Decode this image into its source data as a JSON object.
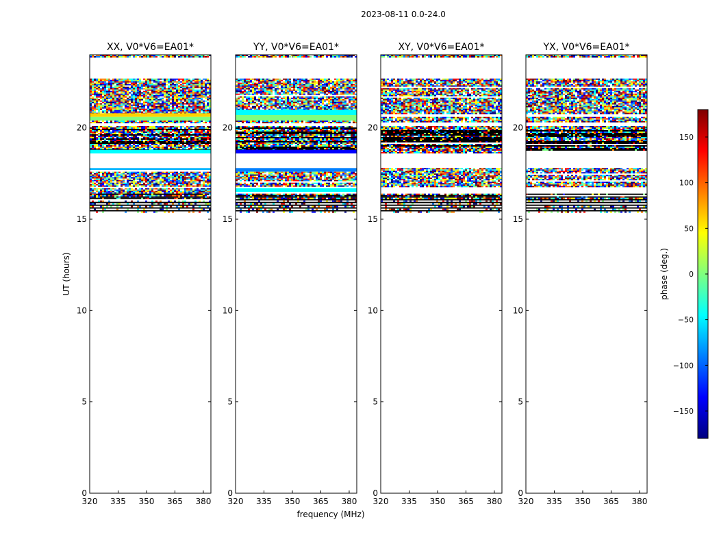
{
  "figure": {
    "title": "2023-08-11 0.0-24.0",
    "xlabel": "frequency (MHz)",
    "ylabel": "UT (hours)"
  },
  "colorbar": {
    "label": "phase (deg.)",
    "range": [
      -180,
      180
    ],
    "ticks": [
      -150,
      -100,
      -50,
      0,
      50,
      100,
      150
    ],
    "tick_labels": [
      "−150",
      "−100",
      "−50",
      "0",
      "50",
      "100",
      "150"
    ],
    "colormap": [
      "#00007f",
      "#0000ff",
      "#007fff",
      "#00ffff",
      "#7fff7f",
      "#ffff00",
      "#ff7f00",
      "#ff0000",
      "#7f0000"
    ]
  },
  "chart_data": [
    {
      "type": "heatmap",
      "title": "XX, V0*V6=EA01*",
      "xlim": [
        320,
        384
      ],
      "ylim": [
        0,
        24
      ],
      "xticks": [
        320,
        335,
        350,
        365,
        380
      ],
      "yticks": [
        0,
        5,
        10,
        15,
        20
      ],
      "bands": [
        {
          "range": [
            23.9,
            24.0
          ],
          "kind": "noise"
        },
        {
          "range": [
            20.8,
            22.7
          ],
          "kind": "noise"
        },
        {
          "range": [
            20.6,
            20.8
          ],
          "kind": "solid",
          "color": "#ffd200"
        },
        {
          "range": [
            20.4,
            20.6
          ],
          "kind": "solid",
          "color": "#7fff7f"
        },
        {
          "range": [
            20.3,
            20.4
          ],
          "kind": "noise"
        },
        {
          "range": [
            18.8,
            20.1
          ],
          "kind": "dark"
        },
        {
          "range": [
            18.6,
            18.8
          ],
          "kind": "solid",
          "color": "#00ffff"
        },
        {
          "range": [
            17.7,
            17.8
          ],
          "kind": "solid",
          "color": "#00b4ff"
        },
        {
          "range": [
            16.8,
            17.6
          ],
          "kind": "noise"
        },
        {
          "range": [
            16.4,
            16.7
          ],
          "kind": "noise"
        },
        {
          "range": [
            16.1,
            16.4
          ],
          "kind": "dark"
        },
        {
          "range": [
            15.4,
            16.1
          ],
          "kind": "fringe"
        }
      ]
    },
    {
      "type": "heatmap",
      "title": "YY, V0*V6=EA01*",
      "xlim": [
        320,
        384
      ],
      "ylim": [
        0,
        24
      ],
      "xticks": [
        320,
        335,
        350,
        365,
        380
      ],
      "yticks": [
        0,
        5,
        10,
        15,
        20
      ],
      "bands": [
        {
          "range": [
            23.9,
            24.0
          ],
          "kind": "noise"
        },
        {
          "range": [
            21.0,
            22.7
          ],
          "kind": "noise"
        },
        {
          "range": [
            20.7,
            21.0
          ],
          "kind": "solid",
          "color": "#00ffff"
        },
        {
          "range": [
            20.4,
            20.7
          ],
          "kind": "solid",
          "color": "#7fff7f"
        },
        {
          "range": [
            20.3,
            20.4
          ],
          "kind": "noise"
        },
        {
          "range": [
            18.8,
            20.1
          ],
          "kind": "dark"
        },
        {
          "range": [
            18.6,
            18.8
          ],
          "kind": "solid",
          "color": "#0000ff"
        },
        {
          "range": [
            17.6,
            17.8
          ],
          "kind": "solid",
          "color": "#007fff"
        },
        {
          "range": [
            16.8,
            17.6
          ],
          "kind": "noise"
        },
        {
          "range": [
            16.5,
            16.7
          ],
          "kind": "solid",
          "color": "#00ffff"
        },
        {
          "range": [
            16.1,
            16.4
          ],
          "kind": "dark"
        },
        {
          "range": [
            15.4,
            16.1
          ],
          "kind": "fringe"
        }
      ]
    },
    {
      "type": "heatmap",
      "title": "XY, V0*V6=EA01*",
      "xlim": [
        320,
        384
      ],
      "ylim": [
        0,
        24
      ],
      "xticks": [
        320,
        335,
        350,
        365,
        380
      ],
      "yticks": [
        0,
        5,
        10,
        15,
        20
      ],
      "bands": [
        {
          "range": [
            23.9,
            24.0
          ],
          "kind": "noise"
        },
        {
          "range": [
            20.8,
            22.7
          ],
          "kind": "noise"
        },
        {
          "range": [
            20.3,
            20.6
          ],
          "kind": "noise"
        },
        {
          "range": [
            18.6,
            20.1
          ],
          "kind": "dark"
        },
        {
          "range": [
            16.8,
            17.8
          ],
          "kind": "noise"
        },
        {
          "range": [
            16.1,
            16.4
          ],
          "kind": "dark"
        },
        {
          "range": [
            15.4,
            16.1
          ],
          "kind": "fringe"
        }
      ]
    },
    {
      "type": "heatmap",
      "title": "YX, V0*V6=EA01*",
      "xlim": [
        320,
        384
      ],
      "ylim": [
        0,
        24
      ],
      "xticks": [
        320,
        335,
        350,
        365,
        380
      ],
      "yticks": [
        0,
        5,
        10,
        15,
        20
      ],
      "bands": [
        {
          "range": [
            23.9,
            24.0
          ],
          "kind": "noise"
        },
        {
          "range": [
            20.8,
            22.7
          ],
          "kind": "noise"
        },
        {
          "range": [
            20.3,
            20.6
          ],
          "kind": "noise"
        },
        {
          "range": [
            18.8,
            20.1
          ],
          "kind": "dark"
        },
        {
          "range": [
            16.8,
            17.8
          ],
          "kind": "noise"
        },
        {
          "range": [
            16.1,
            16.4
          ],
          "kind": "dark"
        },
        {
          "range": [
            15.4,
            16.1
          ],
          "kind": "fringe"
        }
      ]
    }
  ]
}
